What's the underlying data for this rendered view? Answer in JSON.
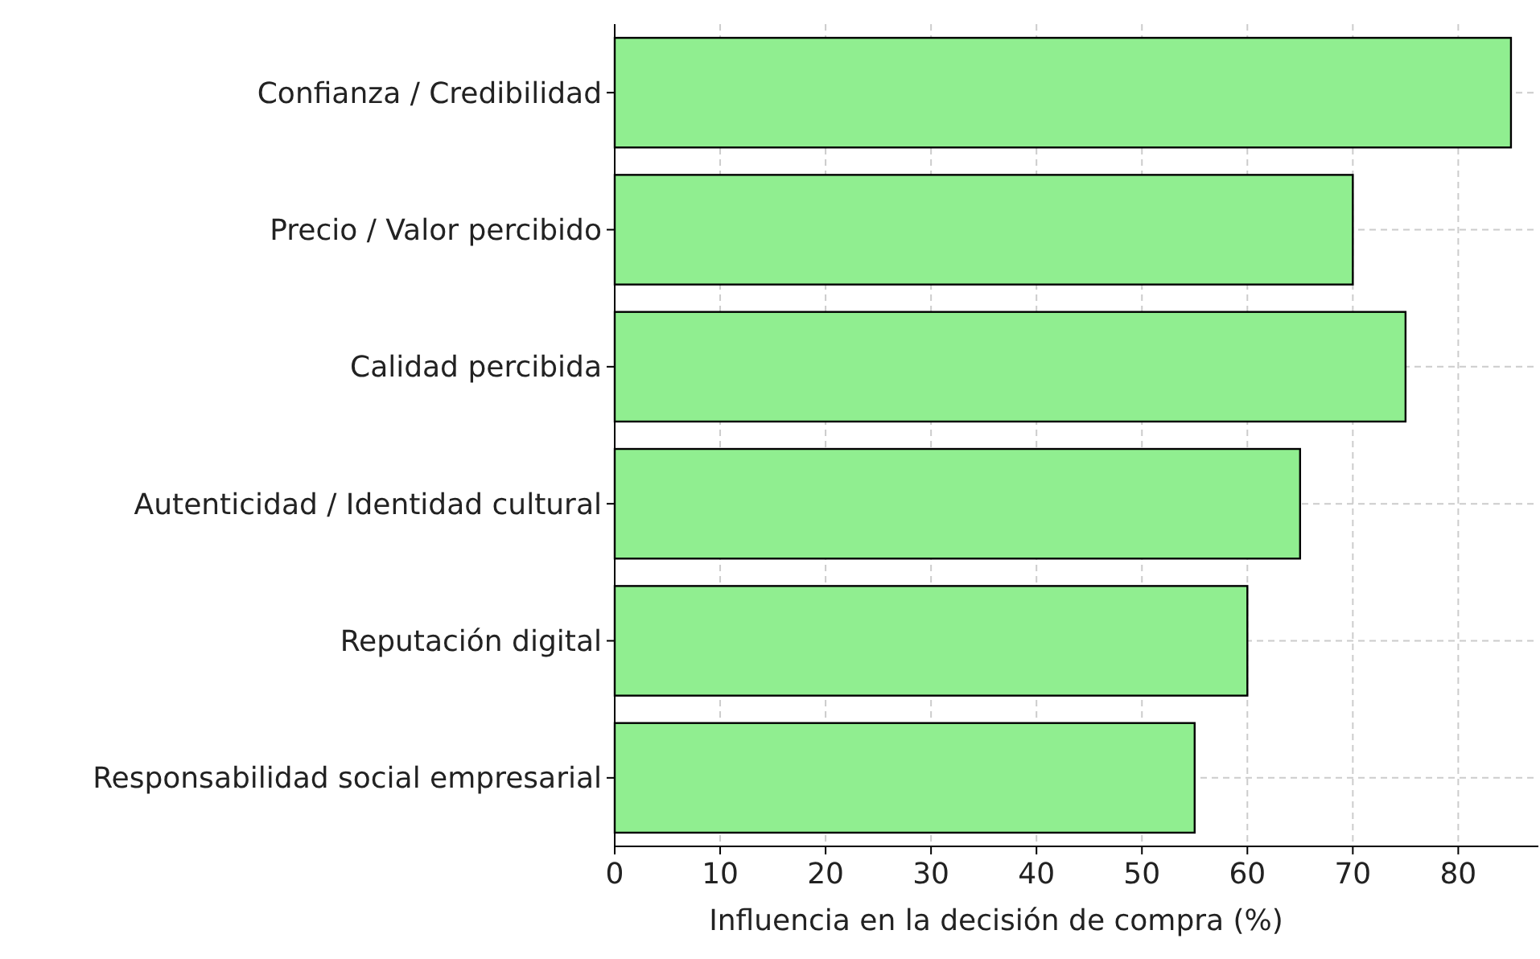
{
  "chart_data": {
    "type": "bar",
    "orientation": "horizontal",
    "xlabel": "Influencia en la decisión de compra (%)",
    "categories": [
      "Confianza / Credibilidad",
      "Precio / Valor percibido",
      "Calidad percibida",
      "Autenticidad / Identidad cultural",
      "Reputación digital",
      "Responsabilidad social empresarial"
    ],
    "values": [
      85,
      70,
      75,
      65,
      60,
      55
    ],
    "color": "#90ee90",
    "xlim": [
      0,
      87.6
    ],
    "xticks": [
      0,
      10,
      20,
      30,
      40,
      50,
      60,
      70,
      80
    ],
    "grid": true
  }
}
